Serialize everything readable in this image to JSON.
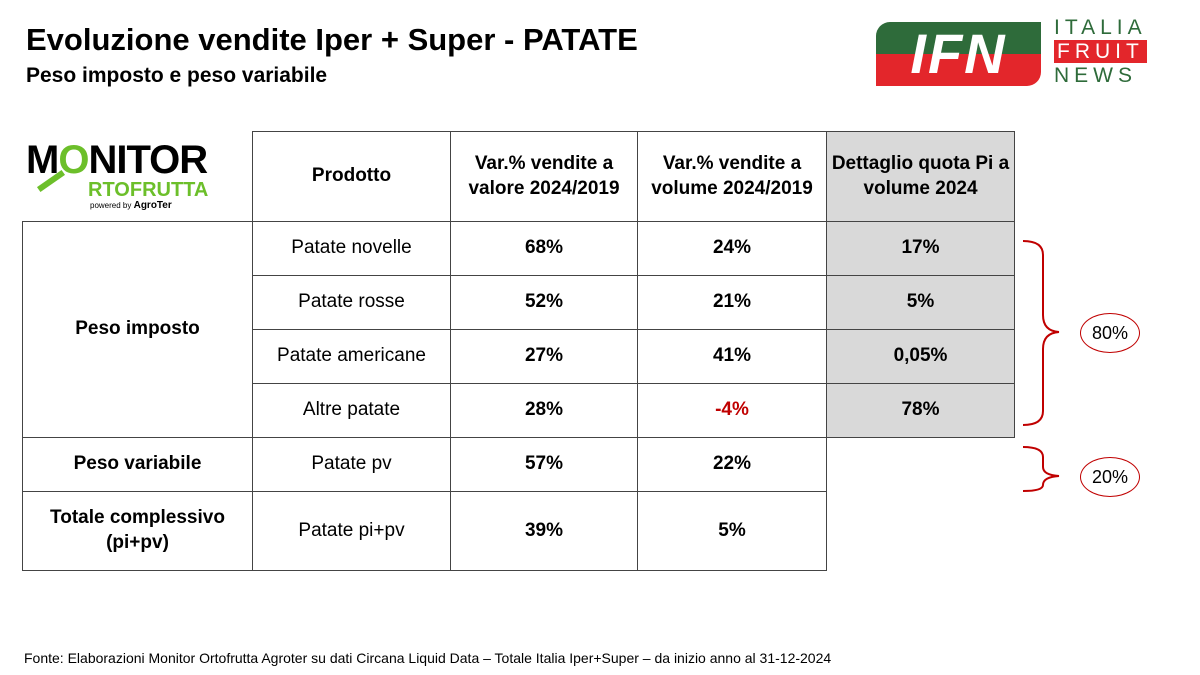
{
  "title": "Evoluzione vendite Iper + Super - PATATE",
  "subtitle": "Peso imposto e peso variabile",
  "logos": {
    "ifn": "IFN",
    "ifn_lines": [
      "ITALIA",
      "FRUIT",
      "NEWS"
    ],
    "monitor": "MONITOR ORTOFRUTTA powered by AgroTer"
  },
  "headers": [
    "Prodotto",
    "Var.% vendite a valore 2024/2019",
    "Var.% vendite a volume 2024/2019",
    "Dettaglio quota Pi a volume 2024"
  ],
  "groups": [
    "Peso imposto",
    "Peso variabile",
    "Totale complessivo (pi+pv)"
  ],
  "rows": [
    {
      "product": "Patate novelle",
      "valore": "68%",
      "volume": "24%",
      "quota": "17%"
    },
    {
      "product": "Patate rosse",
      "valore": "52%",
      "volume": "21%",
      "quota": "5%"
    },
    {
      "product": "Patate americane",
      "valore": "27%",
      "volume": "41%",
      "quota": "0,05%"
    },
    {
      "product": "Altre patate",
      "valore": "28%",
      "volume": "-4%",
      "quota": "78%"
    },
    {
      "product": "Patate pv",
      "valore": "57%",
      "volume": "22%"
    },
    {
      "product": "Patate pi+pv",
      "valore": "39%",
      "volume": "5%"
    }
  ],
  "brackets": [
    "80%",
    "20%"
  ],
  "footer": "Fonte: Elaborazioni Monitor Ortofrutta Agroter su dati Circana Liquid Data – Totale Italia Iper+Super –  da inizio anno al 31-12-2024",
  "colors": {
    "accent_red": "#c00000",
    "green": "#2e6b3a",
    "lime": "#6cbf2a"
  }
}
